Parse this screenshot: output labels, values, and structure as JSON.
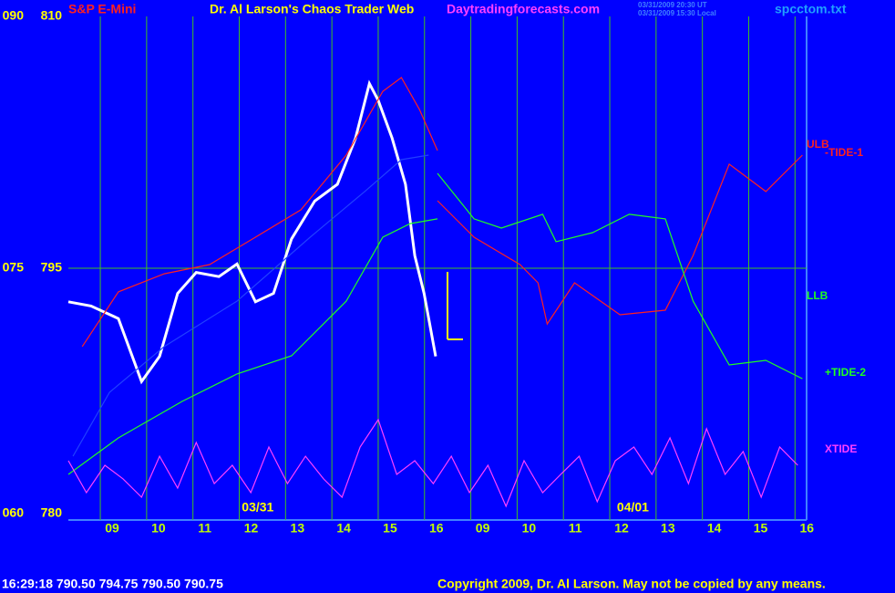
{
  "chart_data": {
    "type": "line",
    "title": "S&P E-Mini",
    "subtitle": "Dr. Al Larson's Chaos Trader Web",
    "site": "Daytradingforecasts.com",
    "timestamps": [
      "03/31/2009 20:30 UT",
      "03/31/2009 15:30 Local"
    ],
    "file": "spcctom.txt",
    "status": "16:29:18  790.50 794.75 790.50 790.75",
    "copyright": "Copyright 2009, Dr. Al Larson. May not be copied by any means.",
    "dates": [
      {
        "value": 3.4,
        "label": "03/31"
      },
      {
        "value": 11.5,
        "label": "04/01"
      }
    ],
    "xlim": [
      -0.69,
      15.25
    ],
    "xticks": [
      {
        "value": 0,
        "label": "09"
      },
      {
        "value": 1,
        "label": "10"
      },
      {
        "value": 2,
        "label": "11"
      },
      {
        "value": 3,
        "label": "12"
      },
      {
        "value": 4,
        "label": "13"
      },
      {
        "value": 5,
        "label": "14"
      },
      {
        "value": 6,
        "label": "15"
      },
      {
        "value": 7,
        "label": "16"
      },
      {
        "value": 8,
        "label": "09"
      },
      {
        "value": 9,
        "label": "10"
      },
      {
        "value": 10,
        "label": "11"
      },
      {
        "value": 11,
        "label": "12"
      },
      {
        "value": 12,
        "label": "13"
      },
      {
        "value": 13,
        "label": "14"
      },
      {
        "value": 14,
        "label": "15"
      },
      {
        "value": 15,
        "label": "16"
      }
    ],
    "ylim": [
      780,
      810
    ],
    "yticks": [
      780,
      795,
      810
    ],
    "y2lim": [
      60,
      90
    ],
    "y2ticks": [
      {
        "value": 60,
        "label": "060"
      },
      {
        "value": 75,
        "label": "075"
      },
      {
        "value": 90,
        "label": "090"
      }
    ],
    "grid": true,
    "series": [
      {
        "color": "#ffffff",
        "x": [
          -0.69,
          -0.2,
          0.39,
          0.89,
          1.28,
          1.67,
          2.07,
          2.56,
          2.95,
          3.35,
          3.74,
          4.13,
          4.63,
          5.12,
          5.51,
          5.81,
          6.0,
          6.3,
          6.59,
          6.79,
          6.99,
          7.24
        ],
        "values": [
          793.0,
          792.75,
          792.0,
          788.25,
          789.75,
          793.5,
          794.75,
          794.5,
          795.25,
          793.0,
          793.5,
          796.75,
          799.0,
          800.0,
          802.75,
          806.0,
          805.0,
          802.75,
          800.0,
          795.75,
          793.5,
          789.75
        ]
      },
      {
        "name": "ULB",
        "color": "#ff2020",
        "x": [
          -0.39,
          0.39,
          1.38,
          2.36,
          3.35,
          4.33,
          5.31,
          6.1,
          6.5,
          6.89,
          7.28
        ],
        "values": [
          790.33,
          793.59,
          794.67,
          795.22,
          796.85,
          798.48,
          801.74,
          805.54,
          806.36,
          804.46,
          802.01
        ]
      },
      {
        "name": "-TIDE-1",
        "color": "#ff2020",
        "x": [
          7.28,
          8.07,
          9.06,
          9.45,
          9.65,
          10.24,
          11.22,
          12.2,
          12.8,
          13.58,
          14.37,
          15.16
        ],
        "values": [
          799.02,
          796.85,
          795.22,
          794.13,
          791.68,
          794.13,
          792.23,
          792.5,
          795.76,
          801.2,
          799.57,
          801.74
        ]
      },
      {
        "name": "LLB",
        "color": "#20ff20",
        "x": [
          -0.69,
          0.39,
          1.77,
          2.95,
          4.13,
          5.31,
          6.1,
          6.69,
          7.28
        ],
        "values": [
          782.72,
          784.89,
          787.07,
          788.7,
          789.78,
          793.04,
          796.85,
          797.66,
          797.94
        ]
      },
      {
        "name": "+TIDE-2",
        "color": "#20ff20",
        "x": [
          7.28,
          8.07,
          8.66,
          9.55,
          9.84,
          10.63,
          11.42,
          12.2,
          12.8,
          13.58,
          14.37,
          15.16
        ],
        "values": [
          800.65,
          797.94,
          797.39,
          798.21,
          796.58,
          797.12,
          798.21,
          797.94,
          793.04,
          789.24,
          789.51,
          788.42
        ]
      },
      {
        "color": "#2040ff",
        "x": [
          -0.59,
          0.2,
          1.38,
          2.95,
          4.53,
          5.71,
          6.5,
          7.09
        ],
        "values": [
          783.8,
          787.61,
          790.33,
          793.04,
          796.85,
          799.57,
          801.47,
          801.74
        ]
      },
      {
        "name": "XTIDE",
        "color": "#ff40ff",
        "x": [
          -0.69,
          -0.3,
          0.1,
          0.49,
          0.89,
          1.28,
          1.67,
          2.07,
          2.46,
          2.85,
          3.25,
          3.64,
          4.04,
          4.43,
          4.82,
          5.22,
          5.61,
          6.0,
          6.4,
          6.79,
          7.19,
          7.58,
          7.97,
          8.37,
          8.76,
          9.15,
          9.55,
          9.94,
          10.34,
          10.73,
          11.12,
          11.52,
          11.91,
          12.3,
          12.7,
          13.09,
          13.49,
          13.88,
          14.27,
          14.67,
          15.06
        ],
        "values": [
          783.53,
          781.63,
          783.26,
          782.45,
          781.36,
          783.8,
          781.9,
          784.62,
          782.17,
          783.26,
          781.63,
          784.35,
          782.17,
          783.8,
          782.45,
          781.36,
          784.35,
          785.98,
          782.72,
          783.53,
          782.17,
          783.8,
          781.63,
          783.26,
          780.82,
          783.53,
          781.63,
          782.72,
          783.8,
          781.09,
          783.53,
          784.35,
          782.72,
          784.89,
          782.17,
          785.44,
          782.72,
          784.08,
          781.36,
          784.35,
          783.26
        ]
      }
    ]
  }
}
